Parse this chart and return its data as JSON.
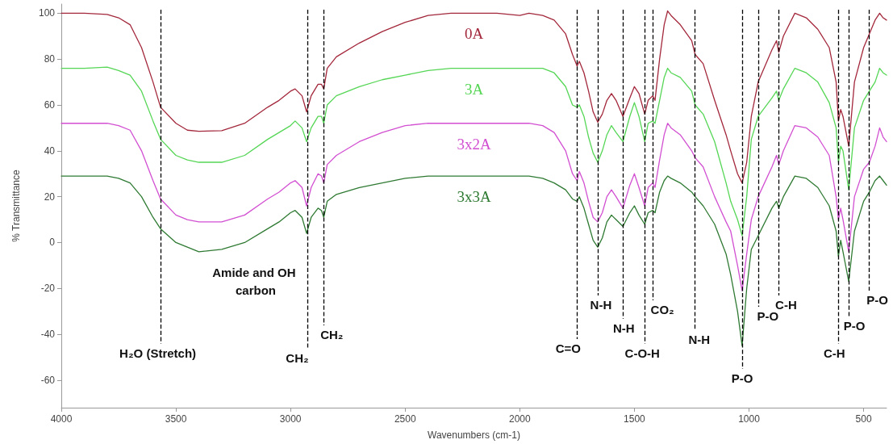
{
  "chart_data": {
    "type": "line",
    "xlabel": "Wavenumbers (cm-1)",
    "ylabel": "% Transmittance",
    "x": [
      4000,
      3900,
      3800,
      3750,
      3700,
      3650,
      3600,
      3567,
      3500,
      3450,
      3400,
      3300,
      3200,
      3100,
      3050,
      3000,
      2980,
      2950,
      2930,
      2910,
      2880,
      2865,
      2855,
      2840,
      2800,
      2700,
      2600,
      2500,
      2400,
      2300,
      2200,
      2100,
      2000,
      1960,
      1900,
      1850,
      1800,
      1770,
      1750,
      1740,
      1720,
      1700,
      1680,
      1660,
      1640,
      1620,
      1600,
      1580,
      1550,
      1520,
      1500,
      1480,
      1455,
      1440,
      1420,
      1410,
      1390,
      1370,
      1355,
      1340,
      1300,
      1250,
      1235,
      1200,
      1150,
      1100,
      1080,
      1050,
      1030,
      1010,
      990,
      960,
      900,
      880,
      870,
      850,
      800,
      750,
      700,
      650,
      620,
      610,
      600,
      590,
      565,
      540,
      500,
      475,
      450,
      430,
      415,
      400
    ],
    "series": [
      {
        "name": "0A",
        "color": "#a3283c",
        "values": [
          100,
          100,
          99.5,
          98,
          95,
          85,
          70,
          59,
          52,
          49,
          48.5,
          48.8,
          52,
          59,
          62,
          66,
          67,
          64,
          57,
          64,
          69,
          69,
          67,
          76,
          81,
          87,
          92,
          96,
          99,
          100,
          100,
          100,
          99,
          100,
          99,
          97,
          91,
          82,
          77,
          79,
          74,
          66,
          57,
          52.5,
          56,
          62,
          65,
          62,
          55,
          63,
          68,
          65,
          56,
          62,
          64,
          62,
          80,
          95,
          101,
          99,
          95,
          88,
          82,
          78,
          62,
          47,
          40,
          30,
          26,
          35,
          55,
          70,
          84,
          88,
          83,
          90,
          100,
          98,
          93,
          85,
          70,
          53,
          58,
          55,
          42,
          70,
          85,
          91,
          97,
          100,
          98,
          97
        ]
      },
      {
        "name": "3A",
        "color": "#55d655",
        "values": [
          76,
          76,
          76.5,
          75,
          73,
          66,
          53,
          45,
          38,
          36,
          35,
          35,
          38,
          45,
          48,
          51,
          53,
          50,
          44,
          50,
          55,
          55,
          52,
          60,
          64,
          68,
          71,
          73,
          75,
          76,
          76,
          76,
          76,
          76,
          76,
          74,
          68,
          60,
          59,
          60,
          55,
          46,
          39,
          35,
          40,
          47,
          51,
          48,
          44,
          55,
          61,
          55,
          44,
          52,
          53,
          52,
          62,
          72,
          76,
          74,
          72,
          66,
          60,
          56,
          44,
          26,
          18,
          10,
          3,
          20,
          45,
          55,
          63,
          66,
          62,
          67,
          76,
          74,
          70,
          61,
          50,
          35,
          42,
          40,
          23,
          50,
          62,
          66,
          70,
          76,
          74,
          73
        ]
      },
      {
        "name": "3x2A",
        "color": "#d24fd2",
        "values": [
          52,
          52,
          52,
          51,
          49,
          40,
          27,
          19,
          12,
          10,
          9,
          9,
          12,
          19,
          22,
          26,
          27,
          24,
          16,
          24,
          30,
          29,
          26,
          34,
          38,
          44,
          48,
          51,
          52,
          52,
          52,
          52,
          52,
          52,
          51,
          48,
          40,
          30,
          27,
          31,
          26,
          18,
          11,
          9,
          13,
          20,
          23,
          20,
          15,
          25,
          30,
          24,
          16,
          24,
          26,
          24,
          36,
          47,
          52,
          50,
          47,
          40,
          37,
          33,
          20,
          9,
          5,
          -10,
          -21,
          -5,
          10,
          20,
          33,
          38,
          34,
          40,
          51,
          50,
          46,
          38,
          20,
          10,
          15,
          10,
          -4,
          20,
          32,
          35,
          42,
          50,
          46,
          44
        ]
      },
      {
        "name": "3x3A",
        "color": "#2e7a32",
        "values": [
          29,
          29,
          29,
          28,
          26,
          20,
          11,
          6,
          0,
          -2,
          -4,
          -3,
          0,
          6,
          9,
          13,
          14,
          11,
          4,
          11,
          15,
          14,
          11,
          18,
          21,
          24,
          26,
          28,
          29,
          29,
          29,
          29,
          29,
          29,
          28,
          26,
          23,
          19,
          18,
          20,
          15,
          8,
          1,
          -2,
          2,
          9,
          12,
          10,
          7,
          13,
          16,
          12,
          8,
          13,
          14,
          13,
          22,
          27,
          29,
          28,
          26,
          22,
          20,
          16,
          8,
          -5,
          -14,
          -30,
          -45,
          -20,
          -3,
          3,
          15,
          18,
          15,
          20,
          29,
          28,
          24,
          16,
          5,
          -6,
          1,
          -4,
          -17,
          5,
          18,
          22,
          27,
          29,
          27,
          25
        ]
      }
    ],
    "xlim": [
      4000,
      400
    ],
    "xticks": [
      4000,
      3500,
      3000,
      2500,
      2000,
      1500,
      1000,
      500
    ],
    "ylim": [
      -72,
      104
    ],
    "yticks": [
      -60,
      -40,
      -20,
      0,
      20,
      40,
      60,
      80,
      100
    ],
    "ref_lines": [
      {
        "axis": "x",
        "value": 3565,
        "label": "H₂O (Stretch)",
        "color": "#000000",
        "line_style": "dashed"
      },
      {
        "axis": "x",
        "value": 2925,
        "label": "CH₂",
        "color": "#000000",
        "line_style": "dashed"
      },
      {
        "axis": "x",
        "value": 2855,
        "label": "CH₂",
        "color": "#000000",
        "line_style": "dashed"
      },
      {
        "axis": "x",
        "value": 1750,
        "label": "C=O",
        "color": "#000000",
        "line_style": "dashed"
      },
      {
        "axis": "x",
        "value": 1660,
        "label": "N-H",
        "color": "#000000",
        "line_style": "dashed"
      },
      {
        "axis": "x",
        "value": 1550,
        "label": "N-H",
        "color": "#000000",
        "line_style": "dashed"
      },
      {
        "axis": "x",
        "value": 1455,
        "label": "C-O-H",
        "color": "#000000",
        "line_style": "dashed"
      },
      {
        "axis": "x",
        "value": 1420,
        "label": "CO₂",
        "color": "#000000",
        "line_style": "dashed"
      },
      {
        "axis": "x",
        "value": 1235,
        "label": "N-H",
        "color": "#000000",
        "line_style": "dashed"
      },
      {
        "axis": "x",
        "value": 1030,
        "label": "P-O",
        "color": "#000000",
        "line_style": "dashed"
      },
      {
        "axis": "x",
        "value": 960,
        "label": "P-O",
        "color": "#000000",
        "line_style": "dashed"
      },
      {
        "axis": "x",
        "value": 870,
        "label": "C-H",
        "color": "#000000",
        "line_style": "dashed"
      },
      {
        "axis": "x",
        "value": 610,
        "label": "C-H",
        "color": "#000000",
        "line_style": "dashed"
      },
      {
        "axis": "x",
        "value": 565,
        "label": "P-O",
        "color": "#000000",
        "line_style": "dashed"
      },
      {
        "axis": "x",
        "value": 475,
        "label": "P-O",
        "color": "#000000",
        "line_style": "dashed"
      }
    ],
    "annotations": [
      "Amide and OH carbon"
    ],
    "legend": false,
    "grid": false,
    "marker": "none",
    "line_style": "solid"
  }
}
